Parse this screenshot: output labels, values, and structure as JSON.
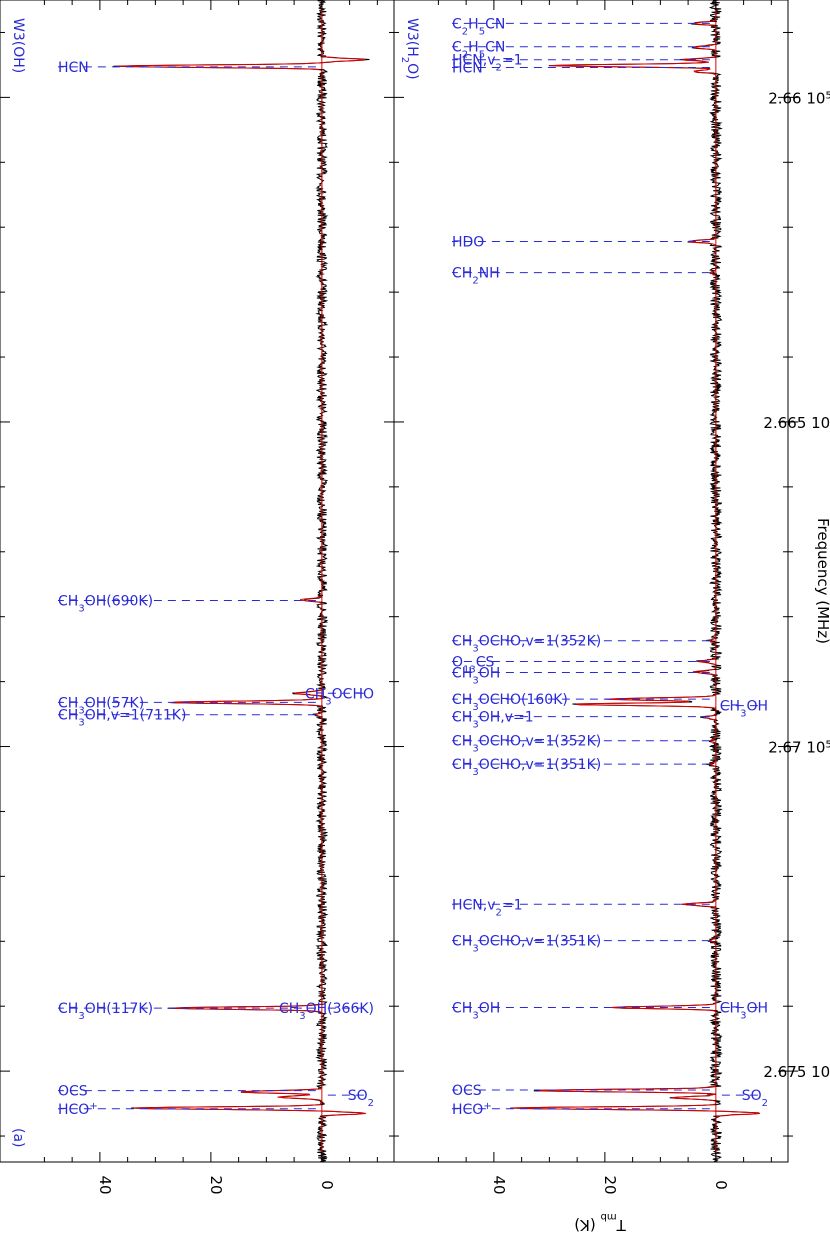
{
  "chart_data": {
    "type": "line",
    "xlabel": "Frequency (MHz)",
    "ylabel": "T_mb (K)",
    "xlim": [
      265850,
      267640
    ],
    "ylim": [
      -13,
      58
    ],
    "x_tick_labels": [
      "2.66 10",
      "2.665 10",
      "2.67 10",
      "2.675 10"
    ],
    "x_tick_values": [
      266000,
      266500,
      267000,
      267500
    ],
    "x_tick_exponent": "5",
    "y_tick_labels": [
      "0",
      "20",
      "40"
    ],
    "y_tick_values": [
      0,
      20,
      40
    ],
    "panels": [
      {
        "title": "W3(OH)",
        "corner_label": "(a)",
        "lines": [
          {
            "x": 265942,
            "peak": -8
          },
          {
            "x": 265952,
            "peak": 37
          },
          {
            "x": 266774,
            "peak": 4
          },
          {
            "x": 266918,
            "peak": 5
          },
          {
            "x": 266932,
            "peak": 28
          },
          {
            "x": 266951,
            "peak": 1
          },
          {
            "x": 267403,
            "peak": 27
          },
          {
            "x": 267532,
            "peak": 15
          },
          {
            "x": 267540,
            "peak": 8
          },
          {
            "x": 267557,
            "peak": 34
          },
          {
            "x": 267565,
            "peak": -8
          }
        ],
        "labels": [
          {
            "text": "HCN",
            "x": 265953,
            "side": "left"
          },
          {
            "text": "CH3OH(690K)",
            "x": 266775,
            "side": "left"
          },
          {
            "text": "CH3OCHO",
            "x": 266918,
            "side": "right"
          },
          {
            "text": "CH3OH(57K)",
            "x": 266932,
            "side": "left"
          },
          {
            "text": "CH3OH,v=1(711K)",
            "x": 266951,
            "side": "left"
          },
          {
            "text": "CH3OH(366K)",
            "x": 267403,
            "side": "right"
          },
          {
            "text": "CH3OH(117K)",
            "x": 267403,
            "side": "left"
          },
          {
            "text": "OCS",
            "x": 267530,
            "side": "left"
          },
          {
            "text": "SO2",
            "x": 267537,
            "side": "right"
          },
          {
            "text": "HCO+",
            "x": 267558,
            "side": "left"
          }
        ]
      },
      {
        "title": "W3(H2O)",
        "lines": [
          {
            "x": 265886,
            "peak": 4
          },
          {
            "x": 265923,
            "peak": 4
          },
          {
            "x": 265942,
            "peak": 6
          },
          {
            "x": 265951,
            "peak": 30
          },
          {
            "x": 265960,
            "peak": 4
          },
          {
            "x": 266222,
            "peak": 5
          },
          {
            "x": 266270,
            "peak": 1
          },
          {
            "x": 266837,
            "peak": 1
          },
          {
            "x": 266869,
            "peak": 3
          },
          {
            "x": 266885,
            "peak": 4
          },
          {
            "x": 266927,
            "peak": 20
          },
          {
            "x": 266935,
            "peak": 26
          },
          {
            "x": 266955,
            "peak": 2
          },
          {
            "x": 266991,
            "peak": 1
          },
          {
            "x": 267027,
            "peak": 1
          },
          {
            "x": 267243,
            "peak": 6
          },
          {
            "x": 267299,
            "peak": 1
          },
          {
            "x": 267402,
            "peak": 19
          },
          {
            "x": 267530,
            "peak": 33
          },
          {
            "x": 267541,
            "peak": 8
          },
          {
            "x": 267557,
            "peak": 37
          },
          {
            "x": 267565,
            "peak": -8
          }
        ],
        "labels": [
          {
            "text": "C2H5CN",
            "x": 265886,
            "side": "left"
          },
          {
            "text": "C2H5CN",
            "x": 265922,
            "side": "left"
          },
          {
            "text": "HCN,v2=1",
            "x": 265942,
            "side": "left"
          },
          {
            "text": "HCN",
            "x": 265954,
            "side": "left"
          },
          {
            "text": "HDO",
            "x": 266222,
            "side": "left"
          },
          {
            "text": "CH2NH",
            "x": 266270,
            "side": "left"
          },
          {
            "text": "CH3OCHO,v=1(352K)",
            "x": 266837,
            "side": "left"
          },
          {
            "text": "O13CS",
            "x": 266869,
            "side": "left"
          },
          {
            "text": "CH3OH",
            "x": 266886,
            "side": "left"
          },
          {
            "text": "CH3OCHO(160K)",
            "x": 266927,
            "side": "left"
          },
          {
            "text": "CH3OH",
            "x": 266937,
            "side": "right"
          },
          {
            "text": "CH3OH,v=1",
            "x": 266954,
            "side": "left"
          },
          {
            "text": "CH3OCHO,v=1(352K)",
            "x": 266991,
            "side": "left"
          },
          {
            "text": "CH3OCHO,v=1(351K)",
            "x": 267027,
            "side": "left"
          },
          {
            "text": "HCN,v2=1",
            "x": 267243,
            "side": "left"
          },
          {
            "text": "CH3OCHO,v=1(351K)",
            "x": 267299,
            "side": "left"
          },
          {
            "text": "CH3OH",
            "x": 267402,
            "side": "left"
          },
          {
            "text": "CH3OH",
            "x": 267402,
            "side": "right"
          },
          {
            "text": "OCS",
            "x": 267529,
            "side": "left"
          },
          {
            "text": "SO2",
            "x": 267537,
            "side": "right"
          },
          {
            "text": "HCO+",
            "x": 267558,
            "side": "left"
          }
        ]
      }
    ]
  }
}
